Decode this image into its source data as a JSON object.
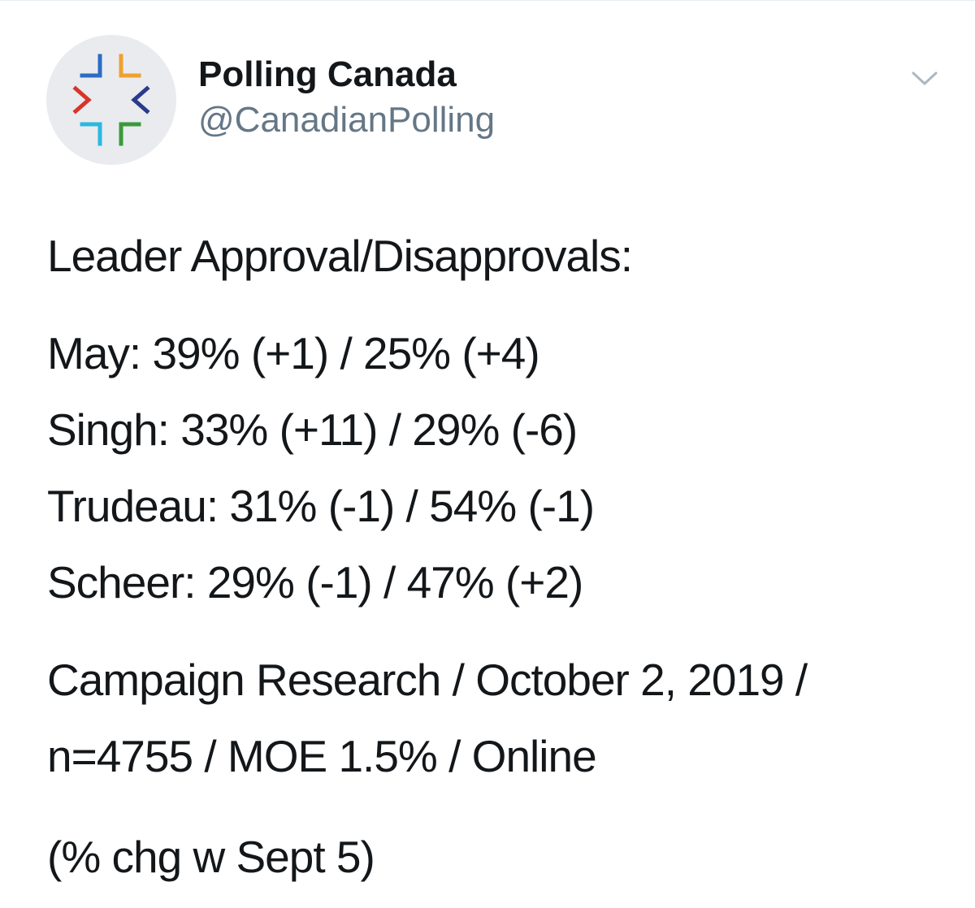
{
  "account": {
    "display_name": "Polling Canada",
    "handle": "@CanadianPolling",
    "avatar_icon": "polling-canada-logo-icon",
    "menu_icon": "chevron-down-icon"
  },
  "colors": {
    "text": "#14171a",
    "handle": "#657786",
    "chevron": "#aab8c2",
    "avatar_bg": "#e9ebee",
    "logo_blue": "#2b6cc4",
    "logo_orange": "#f0a030",
    "logo_red": "#d8352a",
    "logo_navy": "#2a3a8c",
    "logo_cyan": "#2bb8e0",
    "logo_green": "#3a9a3a"
  },
  "tweet": {
    "heading": "Leader Approval/Disapprovals:",
    "lines": [
      "May: 39% (+1) / 25% (+4)",
      "Singh: 33% (+11) / 29% (-6)",
      "Trudeau: 31% (-1) / 54% (-1)",
      "Scheer: 29% (-1) / 47% (+2)"
    ],
    "source_line1": "Campaign Research / October 2, 2019 /",
    "source_line2": "n=4755 / MOE 1.5% / Online",
    "note": "(% chg w Sept 5)"
  }
}
